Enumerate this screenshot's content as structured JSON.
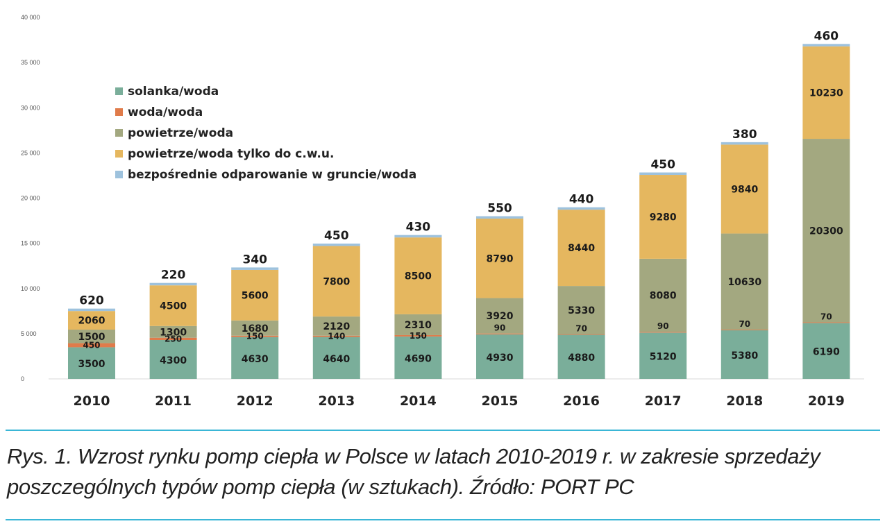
{
  "chart_data": {
    "type": "bar",
    "stacked": true,
    "categories": [
      "2010",
      "2011",
      "2012",
      "2013",
      "2014",
      "2015",
      "2016",
      "2017",
      "2018",
      "2019"
    ],
    "series": [
      {
        "name": "solanka/woda",
        "color": "#7aae9a",
        "values": [
          3500,
          4300,
          4630,
          4640,
          4690,
          4930,
          4880,
          5120,
          5380,
          6190
        ]
      },
      {
        "name": "woda/woda",
        "color": "#e07b4a",
        "values": [
          450,
          250,
          150,
          140,
          150,
          90,
          70,
          90,
          70,
          70
        ]
      },
      {
        "name": "powietrze/woda",
        "color": "#a3a880",
        "values": [
          1500,
          1300,
          1680,
          2120,
          2310,
          3920,
          5330,
          8080,
          10630,
          20300
        ]
      },
      {
        "name": "powietrze/woda tylko do c.w.u.",
        "color": "#e5b75f",
        "values": [
          2060,
          4500,
          5600,
          7800,
          8500,
          8790,
          8440,
          9280,
          9840,
          10230
        ]
      },
      {
        "name": "bezpośrednie odparowanie w gruncie/woda",
        "color": "#9ec2dd",
        "values": [
          620,
          220,
          340,
          450,
          430,
          550,
          440,
          450,
          380,
          460
        ]
      }
    ],
    "ylim": [
      0,
      40000
    ],
    "yticks": [
      0,
      5000,
      10000,
      15000,
      20000,
      25000,
      30000,
      35000,
      40000
    ],
    "ytick_labels": [
      "0",
      "5 000",
      "10 000",
      "15 000",
      "20 000",
      "25 000",
      "30 000",
      "35 000",
      "40 000"
    ],
    "grid": false,
    "legend_position": "top-left"
  },
  "caption": "Rys. 1. Wzrost rynku pomp ciepła w Polsce w latach 2010-2019 r. w zakresie sprzedaży poszczególnych typów pomp ciepła (w sztukach). Źródło: PORT PC"
}
